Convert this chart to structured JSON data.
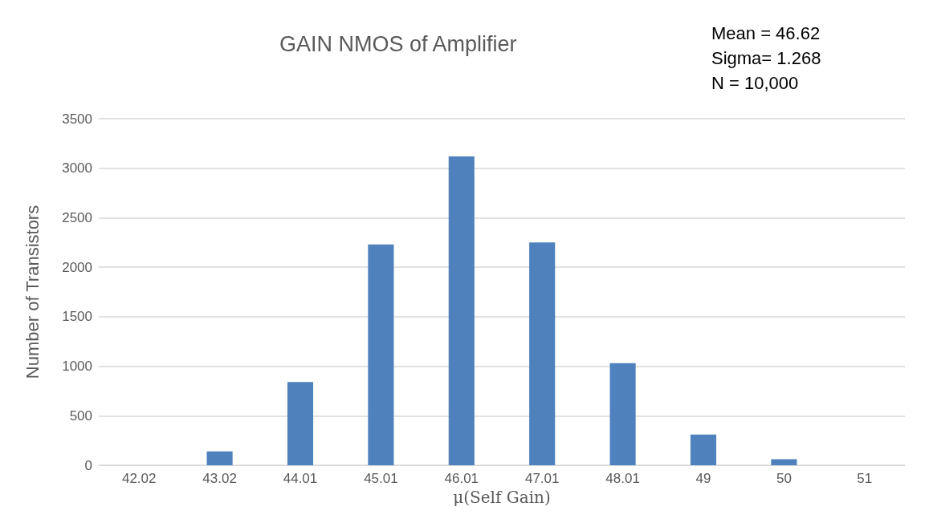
{
  "chart_data": {
    "type": "bar",
    "title": "GAIN NMOS of Amplifier",
    "xlabel": "μ(Self Gain)",
    "ylabel": "Number of Transistors",
    "categories": [
      "42.02",
      "43.02",
      "44.01",
      "45.01",
      "46.01",
      "47.01",
      "48.01",
      "49",
      "50",
      "51"
    ],
    "values": [
      0,
      140,
      840,
      2230,
      3120,
      2250,
      1030,
      310,
      60,
      0
    ],
    "color": "#4f81bd",
    "ylim": [
      0,
      3500
    ],
    "yticks": [
      0,
      500,
      1000,
      1500,
      2000,
      2500,
      3000,
      3500
    ],
    "grid": "y",
    "annotations": [
      "Mean = 46.62",
      "Sigma= 1.268",
      "N = 10,000"
    ]
  }
}
